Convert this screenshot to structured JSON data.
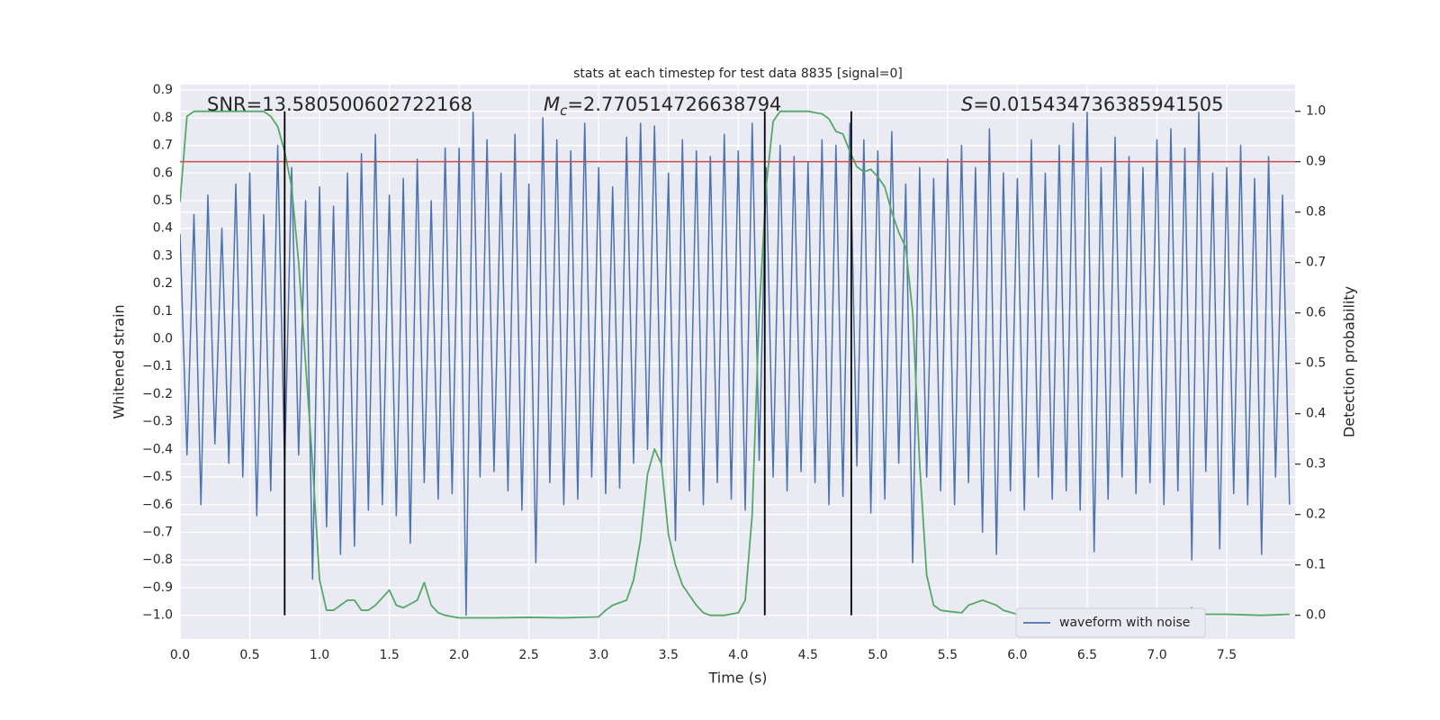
{
  "chart_data": {
    "type": "line",
    "title": "stats at each timestep for test data 8835 [signal=0]",
    "xlabel": "Time (s)",
    "ylabel": "Whitened strain",
    "y2label": "Detection probability",
    "xlim": [
      0,
      7.99
    ],
    "ylim": [
      -1.086,
      0.92
    ],
    "y2lim": [
      -0.047,
      1.053
    ],
    "grid": true,
    "legend": "lower right",
    "xticks": [
      {
        "value": 0,
        "label": "0.0"
      },
      {
        "value": 0.5,
        "label": "0.5"
      },
      {
        "value": 1,
        "label": "1.0"
      },
      {
        "value": 1.5,
        "label": "1.5"
      },
      {
        "value": 2,
        "label": "2.0"
      },
      {
        "value": 2.5,
        "label": "2.5"
      },
      {
        "value": 3,
        "label": "3.0"
      },
      {
        "value": 3.5,
        "label": "3.5"
      },
      {
        "value": 4,
        "label": "4.0"
      },
      {
        "value": 4.5,
        "label": "4.5"
      },
      {
        "value": 5,
        "label": "5.0"
      },
      {
        "value": 5.5,
        "label": "5.5"
      },
      {
        "value": 6,
        "label": "6.0"
      },
      {
        "value": 6.5,
        "label": "6.5"
      },
      {
        "value": 7,
        "label": "7.0"
      },
      {
        "value": 7.5,
        "label": "7.5"
      }
    ],
    "yticks": [
      {
        "value": 0.9,
        "label": "0.9"
      },
      {
        "value": 0.8,
        "label": "0.8"
      },
      {
        "value": 0.7,
        "label": "0.7"
      },
      {
        "value": 0.6,
        "label": "0.6"
      },
      {
        "value": 0.5,
        "label": "0.5"
      },
      {
        "value": 0.4,
        "label": "0.4"
      },
      {
        "value": 0.3,
        "label": "0.3"
      },
      {
        "value": 0.2,
        "label": "0.2"
      },
      {
        "value": 0.1,
        "label": "0.1"
      },
      {
        "value": 0,
        "label": "0.0"
      },
      {
        "value": -0.1,
        "label": "−0.1"
      },
      {
        "value": -0.2,
        "label": "−0.2"
      },
      {
        "value": -0.3,
        "label": "−0.3"
      },
      {
        "value": -0.4,
        "label": "−0.4"
      },
      {
        "value": -0.5,
        "label": "−0.5"
      },
      {
        "value": -0.6,
        "label": "−0.6"
      },
      {
        "value": -0.7,
        "label": "−0.7"
      },
      {
        "value": -0.8,
        "label": "−0.8"
      },
      {
        "value": -0.9,
        "label": "−0.9"
      },
      {
        "value": -1,
        "label": "−1.0"
      }
    ],
    "y2ticks": [
      {
        "value": 0,
        "label": "0.0"
      },
      {
        "value": 0.1,
        "label": "0.1"
      },
      {
        "value": 0.2,
        "label": "0.2"
      },
      {
        "value": 0.3,
        "label": "0.3"
      },
      {
        "value": 0.4,
        "label": "0.4"
      },
      {
        "value": 0.5,
        "label": "0.5"
      },
      {
        "value": 0.6,
        "label": "0.6"
      },
      {
        "value": 0.7,
        "label": "0.7"
      },
      {
        "value": 0.8,
        "label": "0.8"
      },
      {
        "value": 0.9,
        "label": "0.9"
      },
      {
        "value": 1,
        "label": "1.0"
      }
    ],
    "series": [
      {
        "name": "waveform with noise",
        "color": "#4c72b0",
        "x": [
          0,
          0.05,
          0.1,
          0.15,
          0.2,
          0.25,
          0.3,
          0.35,
          0.4,
          0.45,
          0.5,
          0.55,
          0.6,
          0.65,
          0.7,
          0.75,
          0.8,
          0.85,
          0.9,
          0.95,
          1,
          1.05,
          1.1,
          1.15,
          1.2,
          1.25,
          1.3,
          1.35,
          1.4,
          1.45,
          1.5,
          1.55,
          1.6,
          1.65,
          1.7,
          1.75,
          1.8,
          1.85,
          1.9,
          1.95,
          2,
          2.05,
          2.1,
          2.15,
          2.2,
          2.25,
          2.3,
          2.35,
          2.4,
          2.45,
          2.5,
          2.55,
          2.6,
          2.65,
          2.7,
          2.75,
          2.8,
          2.85,
          2.9,
          2.95,
          3,
          3.05,
          3.1,
          3.15,
          3.2,
          3.25,
          3.3,
          3.35,
          3.4,
          3.45,
          3.5,
          3.55,
          3.6,
          3.65,
          3.7,
          3.75,
          3.8,
          3.85,
          3.9,
          3.95,
          4,
          4.05,
          4.1,
          4.15,
          4.2,
          4.25,
          4.3,
          4.35,
          4.4,
          4.45,
          4.5,
          4.55,
          4.6,
          4.65,
          4.7,
          4.75,
          4.8,
          4.85,
          4.9,
          4.95,
          5,
          5.05,
          5.1,
          5.15,
          5.2,
          5.25,
          5.3,
          5.35,
          5.4,
          5.45,
          5.5,
          5.55,
          5.6,
          5.65,
          5.7,
          5.75,
          5.8,
          5.85,
          5.9,
          5.95,
          6,
          6.05,
          6.1,
          6.15,
          6.2,
          6.25,
          6.3,
          6.35,
          6.4,
          6.45,
          6.5,
          6.55,
          6.6,
          6.65,
          6.7,
          6.75,
          6.8,
          6.85,
          6.9,
          6.95,
          7,
          7.05,
          7.1,
          7.15,
          7.2,
          7.25,
          7.3,
          7.35,
          7.4,
          7.45,
          7.5,
          7.55,
          7.6,
          7.65,
          7.7,
          7.75,
          7.8,
          7.85,
          7.9,
          7.95
        ],
        "values": [
          0.38,
          -0.42,
          0.45,
          -0.6,
          0.52,
          -0.38,
          0.4,
          -0.45,
          0.56,
          -0.5,
          0.6,
          -0.64,
          0.45,
          -0.55,
          0.7,
          -0.46,
          0.62,
          -0.42,
          0.5,
          -0.87,
          0.55,
          -0.68,
          0.48,
          -0.78,
          0.6,
          -0.75,
          0.67,
          -0.62,
          0.74,
          -0.6,
          0.52,
          -0.64,
          0.58,
          -0.74,
          0.65,
          -0.52,
          0.5,
          -0.58,
          0.69,
          -0.56,
          0.69,
          -1.0,
          0.82,
          -0.5,
          0.72,
          -0.48,
          0.6,
          -0.55,
          0.74,
          -0.62,
          0.56,
          -0.81,
          0.8,
          -0.52,
          0.72,
          -0.6,
          0.68,
          -0.58,
          0.78,
          -0.5,
          0.62,
          -0.56,
          0.55,
          -0.54,
          0.73,
          -0.45,
          0.78,
          -0.4,
          0.77,
          -0.45,
          0.6,
          -0.73,
          0.72,
          -0.55,
          0.68,
          -0.6,
          0.66,
          -0.52,
          0.74,
          -0.58,
          0.68,
          -0.62,
          0.78,
          -0.44,
          0.62,
          -0.5,
          0.7,
          -0.55,
          0.66,
          -0.48,
          0.64,
          -0.52,
          0.72,
          -0.6,
          0.7,
          -0.57,
          0.78,
          -0.46,
          0.72,
          -0.63,
          0.68,
          -0.58,
          0.75,
          -0.45,
          0.56,
          -0.81,
          0.62,
          -0.5,
          0.58,
          -0.55,
          0.65,
          -0.6,
          0.7,
          -0.52,
          0.62,
          -0.7,
          0.76,
          -0.78,
          0.6,
          -0.55,
          0.58,
          -0.62,
          0.72,
          -0.5,
          0.6,
          -0.58,
          0.7,
          -0.55,
          0.78,
          -0.62,
          0.82,
          -0.77,
          0.62,
          -0.58,
          0.73,
          -0.5,
          0.66,
          -0.56,
          0.62,
          -0.52,
          0.72,
          -0.6,
          0.76,
          -0.55,
          0.69,
          -0.8,
          0.82,
          -0.48,
          0.6,
          -0.76,
          0.62,
          -0.56,
          0.7,
          -0.6,
          0.58,
          -0.78,
          0.66,
          -0.5,
          0.52,
          -0.6
        ]
      },
      {
        "color": "#55a868",
        "axis": "y2",
        "x": [
          0,
          0.05,
          0.1,
          0.2,
          0.4,
          0.6,
          0.65,
          0.7,
          0.75,
          0.8,
          0.85,
          0.9,
          0.95,
          1,
          1.05,
          1.1,
          1.2,
          1.25,
          1.3,
          1.35,
          1.4,
          1.5,
          1.55,
          1.6,
          1.7,
          1.75,
          1.8,
          1.85,
          1.9,
          2,
          2.25,
          2.5,
          2.75,
          3,
          3.05,
          3.1,
          3.2,
          3.25,
          3.3,
          3.35,
          3.4,
          3.45,
          3.5,
          3.55,
          3.6,
          3.7,
          3.75,
          3.8,
          3.9,
          4,
          4.05,
          4.1,
          4.15,
          4.2,
          4.25,
          4.3,
          4.5,
          4.6,
          4.65,
          4.7,
          4.75,
          4.8,
          4.85,
          4.9,
          4.95,
          5,
          5.05,
          5.1,
          5.15,
          5.2,
          5.25,
          5.3,
          5.35,
          5.4,
          5.45,
          5.5,
          5.6,
          5.65,
          5.7,
          5.75,
          5.8,
          5.85,
          5.9,
          6,
          6.5,
          6.75,
          7,
          7.2,
          7.25,
          7.3,
          7.5,
          7.75,
          7.95
        ],
        "values": [
          0.82,
          0.99,
          1.0,
          1.0,
          1.0,
          1.0,
          0.99,
          0.97,
          0.92,
          0.85,
          0.7,
          0.5,
          0.3,
          0.07,
          0.01,
          0.01,
          0.03,
          0.03,
          0.01,
          0.01,
          0.02,
          0.05,
          0.02,
          0.015,
          0.03,
          0.065,
          0.02,
          0.005,
          0.0,
          -0.005,
          -0.005,
          -0.004,
          -0.005,
          -0.003,
          0.01,
          0.02,
          0.03,
          0.07,
          0.15,
          0.28,
          0.33,
          0.3,
          0.16,
          0.1,
          0.06,
          0.02,
          0.005,
          0.0,
          0.0,
          0.005,
          0.03,
          0.2,
          0.6,
          0.85,
          0.98,
          1.0,
          1.0,
          0.995,
          0.985,
          0.96,
          0.955,
          0.92,
          0.89,
          0.88,
          0.885,
          0.87,
          0.85,
          0.8,
          0.76,
          0.73,
          0.6,
          0.3,
          0.08,
          0.02,
          0.01,
          0.008,
          0.005,
          0.02,
          0.025,
          0.03,
          0.025,
          0.02,
          0.01,
          0.002,
          0.002,
          0.003,
          0.002,
          0.003,
          0.015,
          0.002,
          0.002,
          0.0,
          0.002
        ]
      }
    ],
    "hlines": [
      {
        "value": 0.9,
        "axis": "y2",
        "color": "#c44e52"
      }
    ],
    "vlines": {
      "values": [
        0.75,
        4.19,
        4.81
      ],
      "span": [
        0,
        1
      ],
      "axis": "y2",
      "color": "#000000"
    },
    "annotations": [
      {
        "text": "SNR=13.580500602722168"
      },
      {
        "symbol": "M",
        "subscript": "c",
        "text": "=2.770514726638794"
      },
      {
        "symbol": "S",
        "text": "=0.015434736385941505"
      }
    ]
  }
}
